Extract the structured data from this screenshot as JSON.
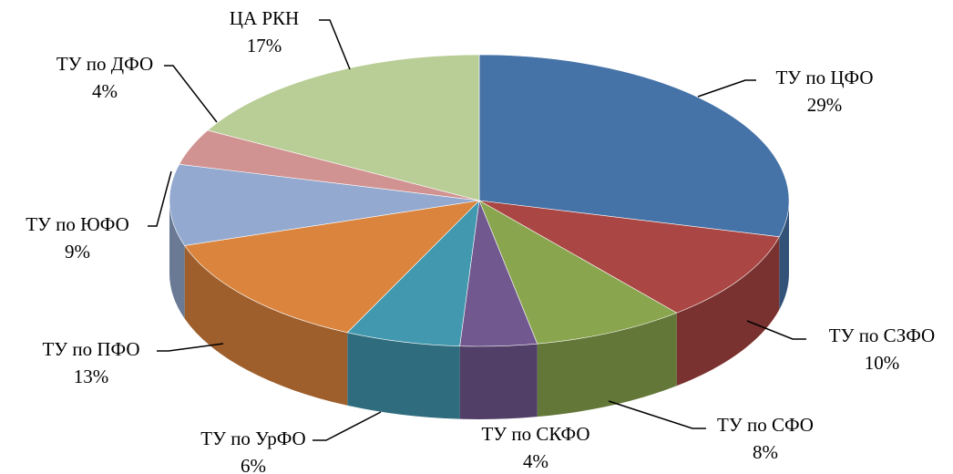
{
  "chart_data": {
    "type": "pie",
    "categories": [
      "ТУ по ЦФО",
      "ТУ по СЗФО",
      "ТУ по СФО",
      "ТУ по СКФО",
      "ТУ по УрФО",
      "ТУ по ПФО",
      "ТУ по ЮФО",
      "ТУ по ДФО",
      "ЦА РКН"
    ],
    "values": [
      29,
      10,
      8,
      4,
      6,
      13,
      9,
      4,
      17
    ],
    "value_labels": [
      "29%",
      "10%",
      "8%",
      "4%",
      "6%",
      "13%",
      "9%",
      "4%",
      "17%"
    ],
    "colors": [
      "#4572a7",
      "#aa4643",
      "#89a54e",
      "#71588f",
      "#4198af",
      "#db843d",
      "#93a9cf",
      "#d19392",
      "#b9cd96"
    ]
  }
}
